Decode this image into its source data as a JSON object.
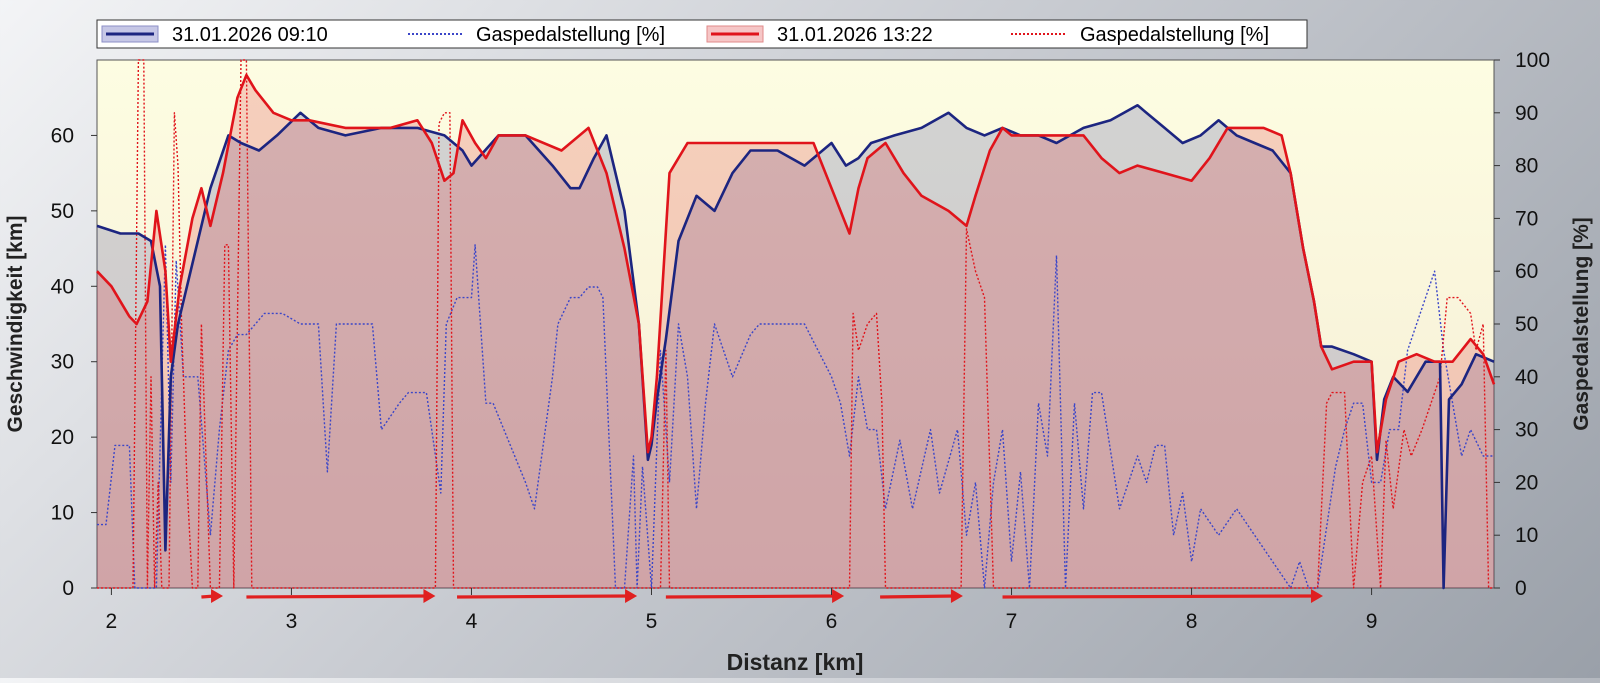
{
  "chart_data": {
    "type": "line",
    "xlabel": "Distanz [km]",
    "ylabel": "Geschwindigkeit [km]",
    "y2label": "Gaspedalstellung [%]",
    "xlim": [
      1.92,
      9.68
    ],
    "ylim": [
      0,
      70
    ],
    "y2lim": [
      0,
      100
    ],
    "xticks": [
      2,
      3,
      4,
      5,
      6,
      7,
      8,
      9
    ],
    "yticks": [
      0,
      10,
      20,
      30,
      40,
      50,
      60
    ],
    "y2ticks": [
      0,
      10,
      20,
      30,
      40,
      50,
      60,
      70,
      80,
      90,
      100
    ],
    "grid": false,
    "legend_position": "top",
    "colors": {
      "series1": "#1c2580",
      "series2": "#3b46c8",
      "series3": "#e0141b",
      "series4": "#e0141b",
      "arrow": "#e02020"
    },
    "legend": [
      {
        "label": "31.01.2026 09:10",
        "style": "solid-box",
        "color": "#1c2580"
      },
      {
        "label": "Gaspedalstellung [%]",
        "style": "dotted",
        "color": "#3b46c8"
      },
      {
        "label": "31.01.2026 13:22",
        "style": "solid-box",
        "color": "#e0141b"
      },
      {
        "label": "Gaspedalstellung [%]",
        "style": "dotted",
        "color": "#e0141b"
      }
    ],
    "series": [
      {
        "name": "31.01.2026 09:10",
        "axis": "left",
        "style": "solid-fill",
        "x": [
          1.92,
          2.05,
          2.15,
          2.22,
          2.27,
          2.3,
          2.33,
          2.37,
          2.45,
          2.55,
          2.65,
          2.72,
          2.82,
          2.92,
          3.05,
          3.15,
          3.3,
          3.5,
          3.7,
          3.85,
          3.95,
          4.0,
          4.15,
          4.3,
          4.45,
          4.55,
          4.6,
          4.68,
          4.75,
          4.85,
          4.93,
          4.98,
          5.0,
          5.03,
          5.08,
          5.15,
          5.25,
          5.35,
          5.45,
          5.55,
          5.7,
          5.85,
          6.0,
          6.08,
          6.15,
          6.22,
          6.35,
          6.5,
          6.65,
          6.75,
          6.85,
          6.95,
          7.05,
          7.15,
          7.25,
          7.4,
          7.55,
          7.7,
          7.85,
          7.95,
          8.05,
          8.15,
          8.25,
          8.35,
          8.45,
          8.55,
          8.62,
          8.68,
          8.72,
          8.78,
          8.9,
          9.0,
          9.03,
          9.07,
          9.12,
          9.2,
          9.3,
          9.38,
          9.4,
          9.43,
          9.5,
          9.58,
          9.68
        ],
        "y": [
          48,
          47,
          47,
          46,
          40,
          5,
          28,
          35,
          43,
          53,
          60,
          59,
          58,
          60,
          63,
          61,
          60,
          61,
          61,
          60,
          58,
          56,
          60,
          60,
          56,
          53,
          53,
          57,
          60,
          50,
          35,
          17,
          19,
          25,
          33,
          46,
          52,
          50,
          55,
          58,
          58,
          56,
          59,
          56,
          57,
          59,
          60,
          61,
          63,
          61,
          60,
          61,
          60,
          60,
          59,
          61,
          62,
          64,
          61,
          59,
          60,
          62,
          60,
          59,
          58,
          55,
          45,
          38,
          32,
          32,
          31,
          30,
          17,
          25,
          28,
          26,
          30,
          30,
          0,
          25,
          27,
          31,
          30
        ]
      },
      {
        "name": "Gaspedalstellung [%]",
        "axis": "right",
        "style": "dotted",
        "x": [
          1.92,
          1.97,
          2.02,
          2.1,
          2.13,
          2.18,
          2.22,
          2.25,
          2.3,
          2.33,
          2.36,
          2.4,
          2.48,
          2.55,
          2.6,
          2.65,
          2.7,
          2.75,
          2.85,
          2.95,
          3.05,
          3.15,
          3.2,
          3.25,
          3.35,
          3.45,
          3.5,
          3.6,
          3.65,
          3.75,
          3.83,
          3.86,
          3.92,
          4.0,
          4.02,
          4.08,
          4.12,
          4.18,
          4.3,
          4.35,
          4.45,
          4.48,
          4.55,
          4.6,
          4.65,
          4.7,
          4.73,
          4.8,
          4.85,
          4.9,
          4.92,
          4.95,
          5.0,
          5.05,
          5.1,
          5.15,
          5.2,
          5.25,
          5.3,
          5.35,
          5.45,
          5.55,
          5.6,
          5.7,
          5.85,
          6.0,
          6.05,
          6.1,
          6.15,
          6.2,
          6.25,
          6.3,
          6.38,
          6.45,
          6.55,
          6.6,
          6.7,
          6.75,
          6.8,
          6.85,
          6.9,
          6.95,
          7.0,
          7.05,
          7.1,
          7.15,
          7.2,
          7.25,
          7.3,
          7.35,
          7.4,
          7.45,
          7.5,
          7.6,
          7.7,
          7.75,
          7.8,
          7.85,
          7.9,
          7.95,
          8.0,
          8.05,
          8.15,
          8.25,
          8.35,
          8.45,
          8.55,
          8.6,
          8.65,
          8.7,
          8.8,
          8.85,
          8.9,
          8.95,
          9.0,
          9.05,
          9.1,
          9.15,
          9.2,
          9.3,
          9.35,
          9.4,
          9.45,
          9.5,
          9.55,
          9.62,
          9.68
        ],
        "y": [
          12,
          12,
          27,
          27,
          0,
          0,
          0,
          0,
          65,
          20,
          62,
          40,
          40,
          10,
          30,
          45,
          48,
          48,
          52,
          52,
          50,
          50,
          22,
          50,
          50,
          50,
          30,
          35,
          37,
          37,
          18,
          50,
          55,
          55,
          65,
          35,
          35,
          30,
          20,
          15,
          40,
          50,
          55,
          55,
          57,
          57,
          55,
          0,
          0,
          25,
          0,
          23,
          0,
          45,
          20,
          50,
          40,
          15,
          35,
          50,
          40,
          48,
          50,
          50,
          50,
          40,
          35,
          25,
          40,
          30,
          30,
          15,
          28,
          15,
          30,
          18,
          30,
          10,
          20,
          0,
          20,
          30,
          5,
          22,
          0,
          35,
          25,
          63,
          0,
          35,
          15,
          37,
          37,
          15,
          25,
          20,
          27,
          27,
          10,
          18,
          5,
          15,
          10,
          15,
          10,
          5,
          0,
          5,
          0,
          0,
          23,
          30,
          35,
          35,
          20,
          20,
          30,
          30,
          45,
          55,
          60,
          45,
          35,
          25,
          30,
          25,
          25
        ]
      },
      {
        "name": "31.01.2026 13:22",
        "axis": "left",
        "style": "solid-fill",
        "x": [
          1.92,
          2.0,
          2.1,
          2.14,
          2.2,
          2.25,
          2.3,
          2.33,
          2.38,
          2.45,
          2.5,
          2.55,
          2.62,
          2.7,
          2.75,
          2.8,
          2.9,
          3.0,
          3.1,
          3.3,
          3.55,
          3.7,
          3.78,
          3.85,
          3.9,
          3.95,
          4.02,
          4.08,
          4.15,
          4.3,
          4.5,
          4.65,
          4.75,
          4.85,
          4.93,
          4.98,
          5.0,
          5.03,
          5.1,
          5.2,
          5.35,
          5.5,
          5.7,
          5.9,
          6.0,
          6.1,
          6.15,
          6.2,
          6.3,
          6.4,
          6.5,
          6.65,
          6.75,
          6.8,
          6.88,
          6.95,
          7.0,
          7.1,
          7.25,
          7.4,
          7.5,
          7.6,
          7.7,
          7.85,
          8.0,
          8.1,
          8.2,
          8.3,
          8.4,
          8.5,
          8.55,
          8.62,
          8.68,
          8.72,
          8.78,
          8.9,
          9.0,
          9.03,
          9.08,
          9.15,
          9.25,
          9.35,
          9.45,
          9.55,
          9.62,
          9.68
        ],
        "y": [
          42,
          40,
          36,
          35,
          38,
          50,
          42,
          30,
          40,
          49,
          53,
          48,
          55,
          65,
          68,
          66,
          63,
          62,
          62,
          61,
          61,
          62,
          59,
          54,
          55,
          62,
          59,
          57,
          60,
          60,
          58,
          61,
          55,
          45,
          35,
          18,
          20,
          28,
          55,
          59,
          59,
          59,
          59,
          59,
          53,
          47,
          53,
          57,
          59,
          55,
          52,
          50,
          48,
          52,
          58,
          61,
          60,
          60,
          60,
          60,
          57,
          55,
          56,
          55,
          54,
          57,
          61,
          61,
          61,
          60,
          55,
          45,
          38,
          32,
          29,
          30,
          30,
          18,
          25,
          30,
          31,
          30,
          30,
          33,
          31,
          27
        ]
      },
      {
        "name": "Gaspedalstellung [%]",
        "axis": "right",
        "style": "dotted",
        "x": [
          1.92,
          2.12,
          2.15,
          2.18,
          2.2,
          2.22,
          2.24,
          2.26,
          2.28,
          2.32,
          2.35,
          2.37,
          2.39,
          2.42,
          2.45,
          2.48,
          2.5,
          2.55,
          2.6,
          2.63,
          2.65,
          2.68,
          2.72,
          2.75,
          2.78,
          3.8,
          3.82,
          3.85,
          3.88,
          3.9,
          4.0,
          5.05,
          5.08,
          5.1,
          6.1,
          6.12,
          6.15,
          6.2,
          6.25,
          6.28,
          6.3,
          6.72,
          6.75,
          6.8,
          6.85,
          6.9,
          6.93,
          8.7,
          8.75,
          8.78,
          8.85,
          8.9,
          8.95,
          9.0,
          9.05,
          9.08,
          9.12,
          9.18,
          9.22,
          9.28,
          9.33,
          9.38,
          9.42,
          9.48,
          9.55,
          9.58,
          9.62,
          9.65,
          9.68
        ],
        "y": [
          0,
          0,
          100,
          100,
          0,
          40,
          0,
          20,
          0,
          0,
          90,
          80,
          50,
          20,
          0,
          0,
          50,
          0,
          0,
          65,
          65,
          0,
          100,
          100,
          0,
          0,
          88,
          90,
          90,
          0,
          0,
          0,
          45,
          0,
          0,
          52,
          45,
          50,
          52,
          35,
          0,
          0,
          68,
          60,
          55,
          0,
          0,
          0,
          35,
          37,
          37,
          0,
          20,
          25,
          0,
          28,
          15,
          30,
          25,
          30,
          35,
          40,
          55,
          55,
          52,
          45,
          50,
          0,
          0
        ]
      }
    ],
    "arrows": [
      [
        2.5,
        2.62
      ],
      [
        2.75,
        3.8
      ],
      [
        3.92,
        4.92
      ],
      [
        5.08,
        6.07
      ],
      [
        6.27,
        6.73
      ],
      [
        6.95,
        8.73
      ]
    ]
  }
}
